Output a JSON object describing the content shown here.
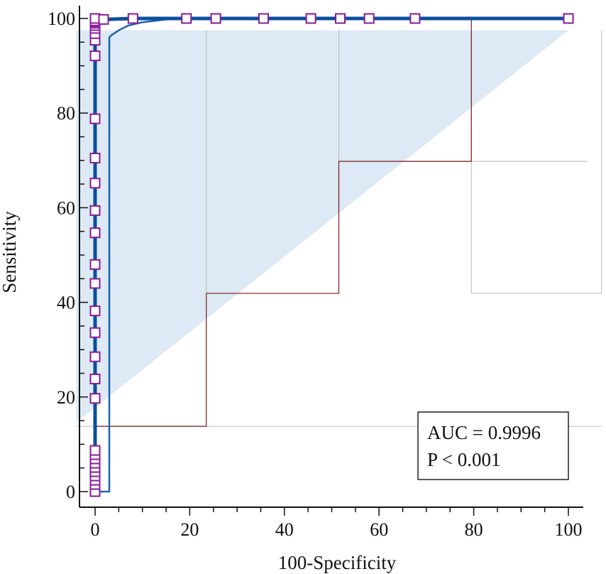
{
  "chart_data": {
    "type": "line",
    "title": "",
    "xlabel": "100-Specificity",
    "ylabel": "Sensitivity",
    "xlim": [
      0,
      100
    ],
    "ylim": [
      0,
      100
    ],
    "x_ticks": [
      "0",
      "20",
      "40",
      "60",
      "80",
      "100"
    ],
    "y_ticks": [
      "0",
      "20",
      "40",
      "60",
      "80",
      "100"
    ],
    "grid": false,
    "annotation": {
      "lines": [
        "AUC = 0.9996",
        "P < 0.001"
      ],
      "placement": "bottom-right"
    },
    "series": [
      {
        "role": "roc-curve",
        "color": "#0b4f9c",
        "x": [
          0,
          0,
          0,
          0,
          0,
          0,
          0,
          0,
          0,
          0,
          0,
          0,
          0,
          0,
          0,
          0,
          0,
          0,
          0,
          0,
          0,
          0,
          0,
          0,
          0,
          0,
          0,
          0,
          0,
          0,
          0,
          0,
          0,
          0,
          0,
          0,
          0,
          1.8,
          8,
          19.3,
          25.5,
          35.6,
          45.6,
          51.8,
          57.9,
          67.6,
          100
        ],
        "y": [
          0,
          1.5,
          2.4,
          3.3,
          4.2,
          5.1,
          6.0,
          6.9,
          7.8,
          8.7,
          19.7,
          23.8,
          28.5,
          33.6,
          38.2,
          44.0,
          48.0,
          54.7,
          59.4,
          65.2,
          70.5,
          78.8,
          92.1,
          95.4,
          96.8,
          97.9,
          98.5,
          99.0,
          99.3,
          99.5,
          99.6,
          99.7,
          99.8,
          99.9,
          99.95,
          99.98,
          100,
          99.8,
          100,
          100,
          100,
          100,
          100,
          100,
          100,
          100,
          100
        ]
      },
      {
        "role": "confidence-bound-lower",
        "color": "#1a64b0",
        "x": [
          0,
          3,
          3,
          3.5,
          5,
          7,
          10,
          15,
          20,
          100
        ],
        "y": [
          0,
          0,
          96,
          96.5,
          97.5,
          98.5,
          99.2,
          99.8,
          100,
          100
        ]
      },
      {
        "role": "confidence-band-upper",
        "color": "#dde9f5",
        "x": [
          -4,
          -4,
          100
        ],
        "y": [
          14.6,
          97.5,
          97.5
        ]
      },
      {
        "role": "reference-step",
        "color": "#7a1a1a",
        "x": [
          0,
          23.5,
          23.5,
          51.5,
          51.5,
          79.5,
          79.5
        ],
        "y": [
          13.8,
          13.8,
          41.9,
          41.9,
          69.8,
          69.8,
          100
        ]
      }
    ]
  }
}
